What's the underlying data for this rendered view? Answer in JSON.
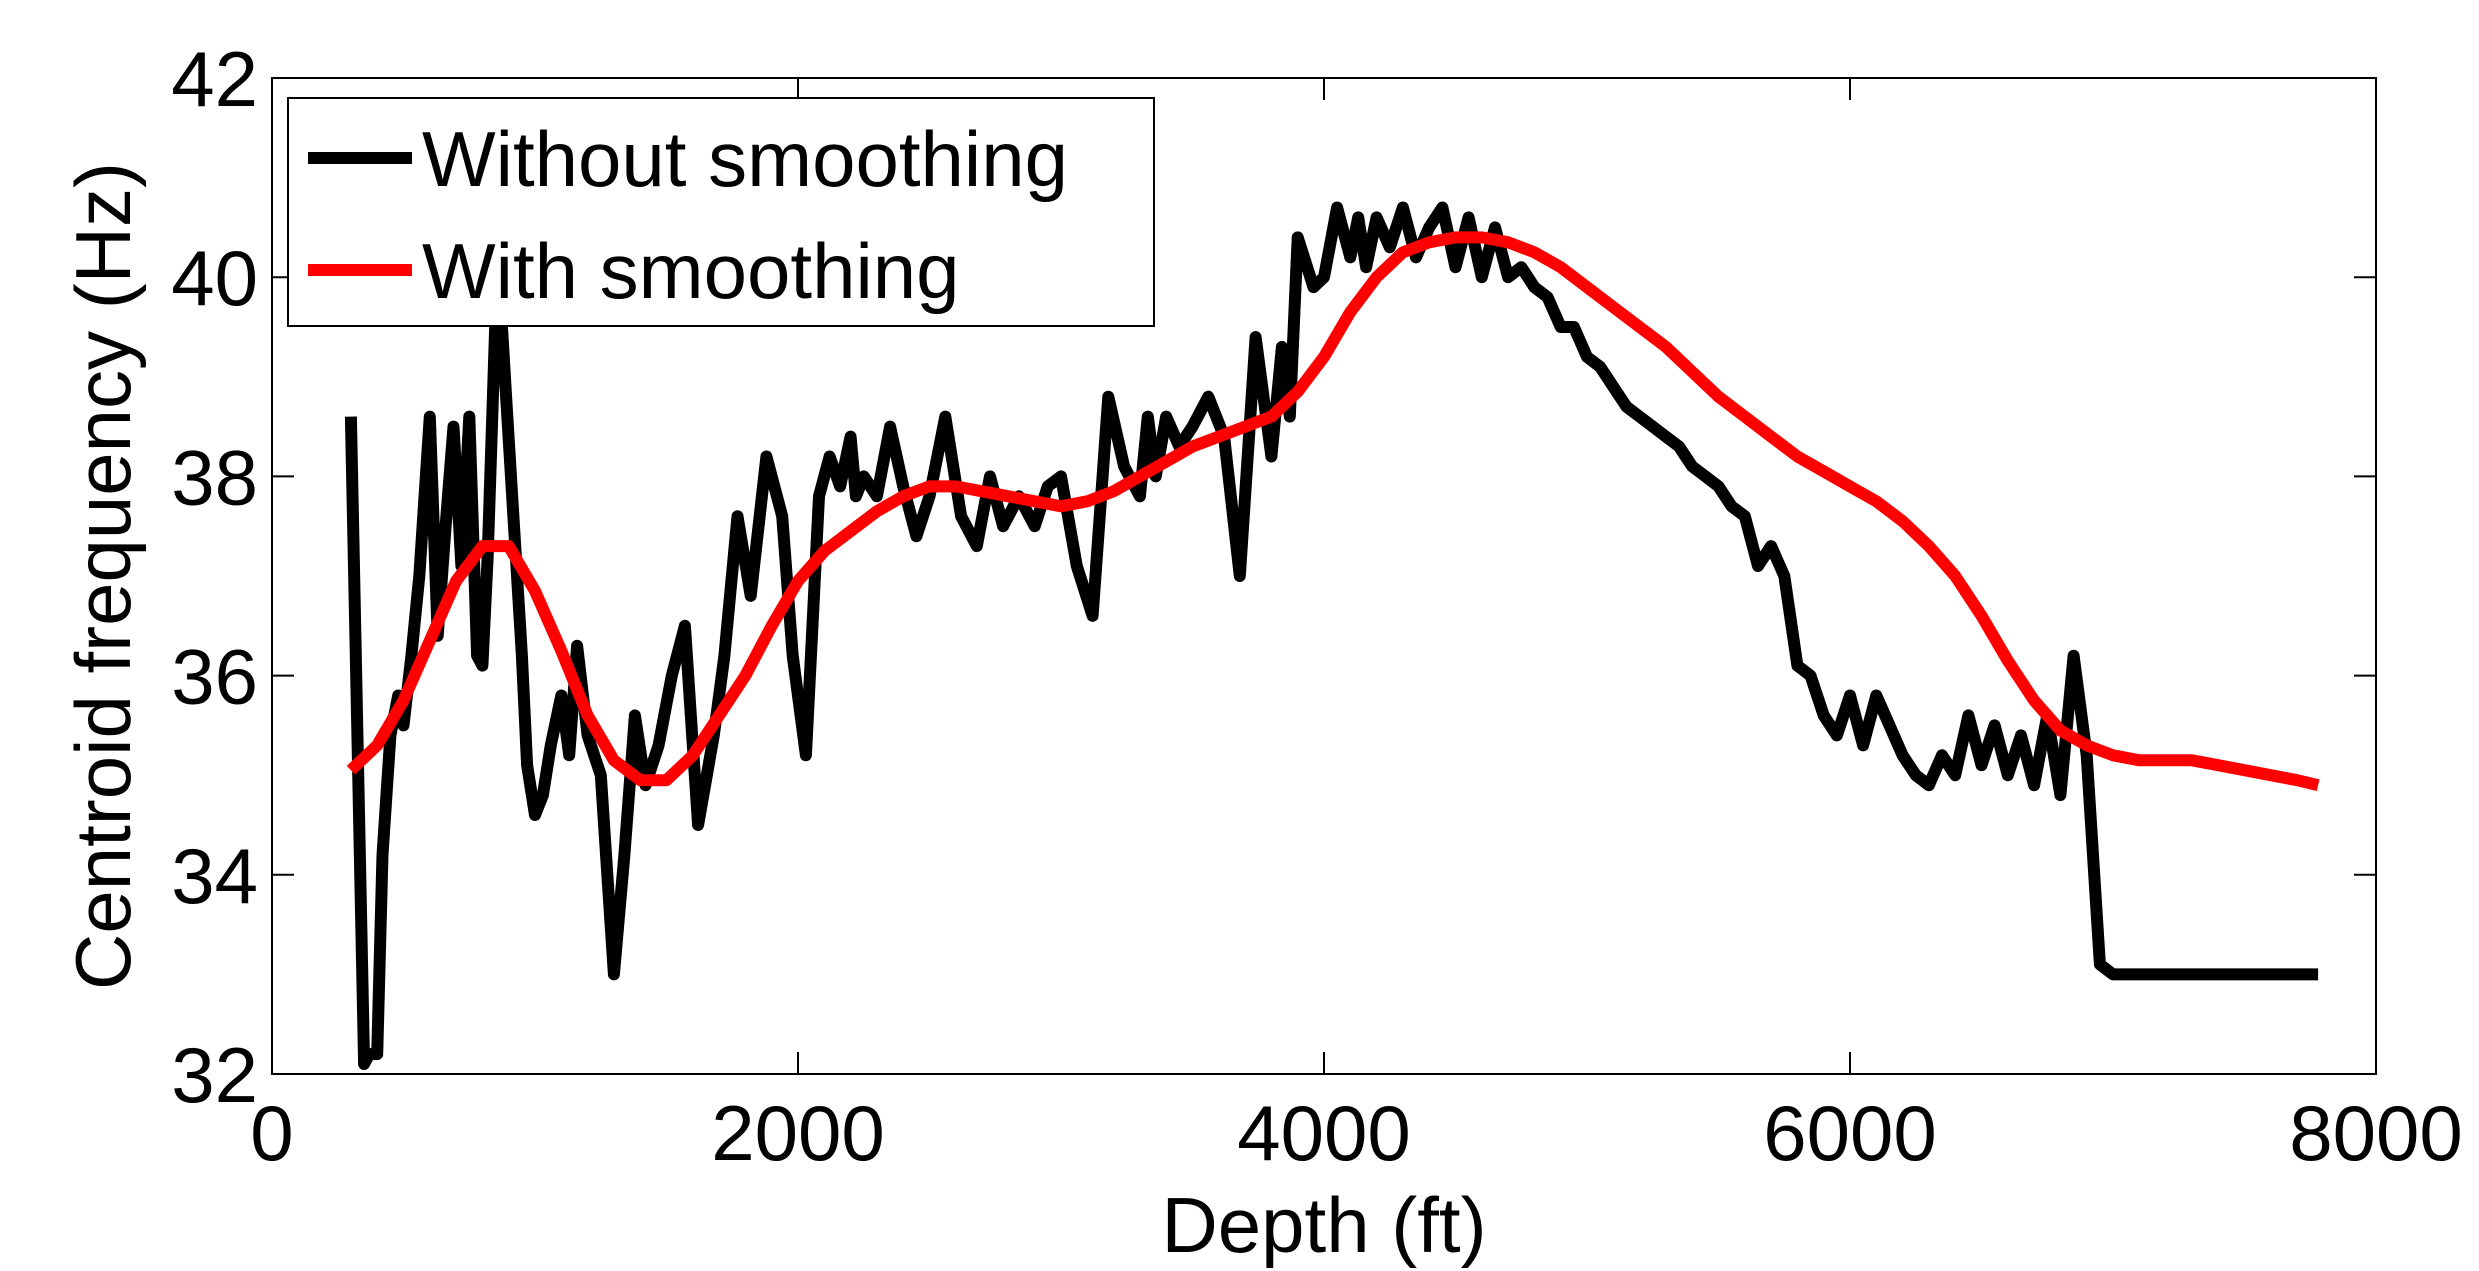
{
  "chart_data": {
    "type": "line",
    "title": "",
    "xlabel": "Depth (ft)",
    "ylabel": "Centroid frequency (Hz)",
    "xlim": [
      0,
      8000
    ],
    "ylim": [
      32,
      42
    ],
    "xticks": [
      0,
      2000,
      4000,
      6000,
      8000
    ],
    "yticks": [
      32,
      34,
      36,
      38,
      40,
      42
    ],
    "xtick_labels": [
      "0",
      "2000",
      "4000",
      "6000",
      "8000"
    ],
    "ytick_labels": [
      "32",
      "34",
      "36",
      "38",
      "40",
      "42"
    ],
    "grid": false,
    "legend_position": "top-left",
    "series": [
      {
        "name": "Without smoothing",
        "color": "#000000",
        "x": [
          300,
          320,
          350,
          370,
          400,
          420,
          450,
          480,
          500,
          530,
          560,
          600,
          630,
          660,
          690,
          720,
          750,
          780,
          800,
          820,
          850,
          870,
          890,
          920,
          950,
          970,
          1000,
          1030,
          1060,
          1100,
          1130,
          1160,
          1200,
          1250,
          1300,
          1340,
          1380,
          1420,
          1470,
          1520,
          1570,
          1620,
          1680,
          1720,
          1770,
          1820,
          1880,
          1940,
          1980,
          2030,
          2080,
          2120,
          2160,
          2200,
          2220,
          2250,
          2300,
          2350,
          2400,
          2450,
          2500,
          2560,
          2620,
          2680,
          2730,
          2780,
          2840,
          2900,
          2950,
          3000,
          3060,
          3120,
          3180,
          3240,
          3300,
          3330,
          3360,
          3400,
          3450,
          3500,
          3560,
          3620,
          3680,
          3740,
          3800,
          3840,
          3870,
          3900,
          3960,
          4000,
          4050,
          4100,
          4130,
          4160,
          4200,
          4250,
          4300,
          4350,
          4400,
          4450,
          4500,
          4550,
          4600,
          4650,
          4700,
          4750,
          4800,
          4850,
          4900,
          4950,
          5000,
          5050,
          5100,
          5150,
          5200,
          5250,
          5300,
          5350,
          5400,
          5450,
          5500,
          5550,
          5600,
          5650,
          5700,
          5750,
          5800,
          5850,
          5900,
          5950,
          6000,
          6050,
          6100,
          6150,
          6200,
          6250,
          6300,
          6350,
          6400,
          6450,
          6500,
          6550,
          6600,
          6650,
          6700,
          6750,
          6800,
          6850,
          6900,
          6950,
          7000,
          7050,
          7100,
          7150,
          7200,
          7250,
          7300,
          7350,
          7400,
          7450,
          7500,
          7550,
          7600,
          7650,
          7700,
          7730,
          7760,
          7780
        ],
        "values": [
          38.6,
          36.0,
          32.1,
          32.2,
          32.2,
          34.2,
          35.4,
          35.8,
          35.5,
          36.2,
          37.0,
          38.6,
          36.4,
          37.5,
          38.5,
          37.1,
          38.6,
          36.2,
          36.1,
          37.2,
          39.6,
          39.7,
          38.8,
          37.5,
          36.2,
          35.1,
          34.6,
          34.8,
          35.3,
          35.8,
          35.2,
          36.3,
          35.4,
          35.0,
          33.0,
          34.2,
          35.6,
          34.9,
          35.3,
          36.0,
          36.5,
          34.5,
          35.4,
          36.2,
          37.6,
          36.8,
          38.2,
          37.6,
          36.2,
          35.2,
          37.8,
          38.2,
          37.9,
          38.4,
          37.8,
          38.0,
          37.8,
          38.5,
          37.9,
          37.4,
          37.8,
          38.6,
          37.6,
          37.3,
          38.0,
          37.5,
          37.8,
          37.5,
          37.9,
          38.0,
          37.1,
          36.6,
          38.8,
          38.1,
          37.8,
          38.6,
          38.0,
          38.6,
          38.3,
          38.5,
          38.8,
          38.4,
          37.0,
          39.4,
          38.2,
          39.3,
          38.6,
          40.4,
          39.9,
          40.0,
          40.7,
          40.2,
          40.6,
          40.1,
          40.6,
          40.3,
          40.7,
          40.2,
          40.5,
          40.7,
          40.1,
          40.6,
          40.0,
          40.5,
          40.0,
          40.1,
          39.9,
          39.8,
          39.5,
          39.5,
          39.2,
          39.1,
          38.9,
          38.7,
          38.6,
          38.5,
          38.4,
          38.3,
          38.1,
          38.0,
          37.9,
          37.7,
          37.6,
          37.1,
          37.3,
          37.0,
          36.1,
          36.0,
          35.6,
          35.4,
          35.8,
          35.3,
          35.8,
          35.5,
          35.2,
          35.0,
          34.9,
          35.2,
          35.0,
          35.6,
          35.1,
          35.5,
          35.0,
          35.4,
          34.9,
          35.6,
          34.8,
          36.2,
          35.2,
          33.1,
          33.0,
          33.0,
          33.0,
          33.0,
          33.0,
          33.0,
          33.0,
          33.0,
          33.0,
          33.0,
          33.0,
          33.0,
          33.0,
          33.0,
          33.0,
          33.0,
          33.0,
          33.0
        ]
      },
      {
        "name": "With smoothing",
        "color": "#ff0000",
        "x": [
          300,
          400,
          500,
          600,
          700,
          800,
          900,
          1000,
          1100,
          1200,
          1300,
          1400,
          1500,
          1600,
          1700,
          1800,
          1900,
          2000,
          2100,
          2200,
          2300,
          2400,
          2500,
          2600,
          2700,
          2800,
          2900,
          3000,
          3100,
          3200,
          3300,
          3400,
          3500,
          3600,
          3700,
          3800,
          3900,
          4000,
          4100,
          4200,
          4300,
          4400,
          4500,
          4600,
          4700,
          4800,
          4900,
          5000,
          5100,
          5200,
          5300,
          5400,
          5500,
          5600,
          5700,
          5800,
          5900,
          6000,
          6100,
          6200,
          6300,
          6400,
          6500,
          6600,
          6700,
          6800,
          6900,
          7000,
          7100,
          7200,
          7300,
          7400,
          7500,
          7600,
          7700,
          7780
        ],
        "values": [
          35.05,
          35.3,
          35.75,
          36.35,
          36.95,
          37.3,
          37.3,
          36.85,
          36.25,
          35.6,
          35.15,
          34.95,
          34.95,
          35.2,
          35.6,
          36.0,
          36.5,
          36.95,
          37.25,
          37.45,
          37.65,
          37.8,
          37.9,
          37.9,
          37.85,
          37.8,
          37.75,
          37.7,
          37.75,
          37.85,
          38.0,
          38.15,
          38.3,
          38.4,
          38.5,
          38.6,
          38.85,
          39.2,
          39.65,
          40.0,
          40.25,
          40.35,
          40.4,
          40.4,
          40.35,
          40.25,
          40.1,
          39.9,
          39.7,
          39.5,
          39.3,
          39.05,
          38.8,
          38.6,
          38.4,
          38.2,
          38.05,
          37.9,
          37.75,
          37.55,
          37.3,
          37.0,
          36.6,
          36.15,
          35.75,
          35.45,
          35.3,
          35.2,
          35.15,
          35.15,
          35.15,
          35.1,
          35.05,
          35.0,
          34.95,
          34.9
        ]
      }
    ]
  }
}
